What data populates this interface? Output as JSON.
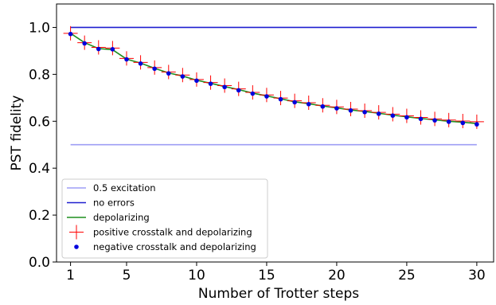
{
  "chart_data": {
    "type": "line",
    "xlabel": "Number of Trotter steps",
    "ylabel": "PST fidelity",
    "xlim": [
      0.0,
      31.2
    ],
    "ylim": [
      0.0,
      1.1
    ],
    "xticks": [
      1,
      5,
      10,
      15,
      20,
      25,
      30
    ],
    "yticks": [
      0.0,
      0.2,
      0.4,
      0.6,
      0.8,
      1.0
    ],
    "ytick_labels": [
      "0.0",
      "0.2",
      "0.4",
      "0.6",
      "0.8",
      "1.0"
    ],
    "grid": false,
    "legend_position": "lower-left",
    "x": [
      1,
      2,
      3,
      4,
      5,
      6,
      7,
      8,
      9,
      10,
      11,
      12,
      13,
      14,
      15,
      16,
      17,
      18,
      19,
      20,
      21,
      22,
      23,
      24,
      25,
      26,
      27,
      28,
      29,
      30
    ],
    "series": [
      {
        "name": "0.5 excitation",
        "style": "line",
        "color": "#9e9ef5",
        "values": [
          0.5,
          0.5,
          0.5,
          0.5,
          0.5,
          0.5,
          0.5,
          0.5,
          0.5,
          0.5,
          0.5,
          0.5,
          0.5,
          0.5,
          0.5,
          0.5,
          0.5,
          0.5,
          0.5,
          0.5,
          0.5,
          0.5,
          0.5,
          0.5,
          0.5,
          0.5,
          0.5,
          0.5,
          0.5,
          0.5
        ]
      },
      {
        "name": "no errors",
        "style": "line",
        "color": "#1f1fcf",
        "values": [
          1.0,
          1.0,
          1.0,
          1.0,
          1.0,
          1.0,
          1.0,
          1.0,
          1.0,
          1.0,
          1.0,
          1.0,
          1.0,
          1.0,
          1.0,
          1.0,
          1.0,
          1.0,
          1.0,
          1.0,
          1.0,
          1.0,
          1.0,
          1.0,
          1.0,
          1.0,
          1.0,
          1.0,
          1.0,
          1.0
        ]
      },
      {
        "name": "depolarizing",
        "style": "line",
        "color": "#1f8f1f",
        "values": [
          0.975,
          0.935,
          0.91,
          0.905,
          0.865,
          0.848,
          0.826,
          0.806,
          0.793,
          0.775,
          0.762,
          0.748,
          0.735,
          0.72,
          0.708,
          0.696,
          0.683,
          0.675,
          0.665,
          0.657,
          0.648,
          0.642,
          0.634,
          0.626,
          0.619,
          0.612,
          0.606,
          0.6,
          0.596,
          0.59
        ]
      },
      {
        "name": "positive crosstalk and depolarizing",
        "style": "plus",
        "color": "#ff0000",
        "values": [
          0.975,
          0.935,
          0.915,
          0.912,
          0.868,
          0.851,
          0.829,
          0.81,
          0.797,
          0.778,
          0.765,
          0.752,
          0.738,
          0.723,
          0.712,
          0.699,
          0.687,
          0.679,
          0.668,
          0.661,
          0.652,
          0.645,
          0.638,
          0.63,
          0.623,
          0.616,
          0.61,
          0.605,
          0.601,
          0.598
        ]
      },
      {
        "name": "negative crosstalk and depolarizing",
        "style": "dot",
        "color": "#0000dd",
        "values": [
          0.972,
          0.932,
          0.908,
          0.907,
          0.864,
          0.846,
          0.824,
          0.804,
          0.791,
          0.773,
          0.76,
          0.746,
          0.732,
          0.718,
          0.706,
          0.694,
          0.681,
          0.673,
          0.663,
          0.655,
          0.646,
          0.639,
          0.632,
          0.624,
          0.617,
          0.61,
          0.604,
          0.598,
          0.593,
          0.587
        ]
      }
    ]
  }
}
